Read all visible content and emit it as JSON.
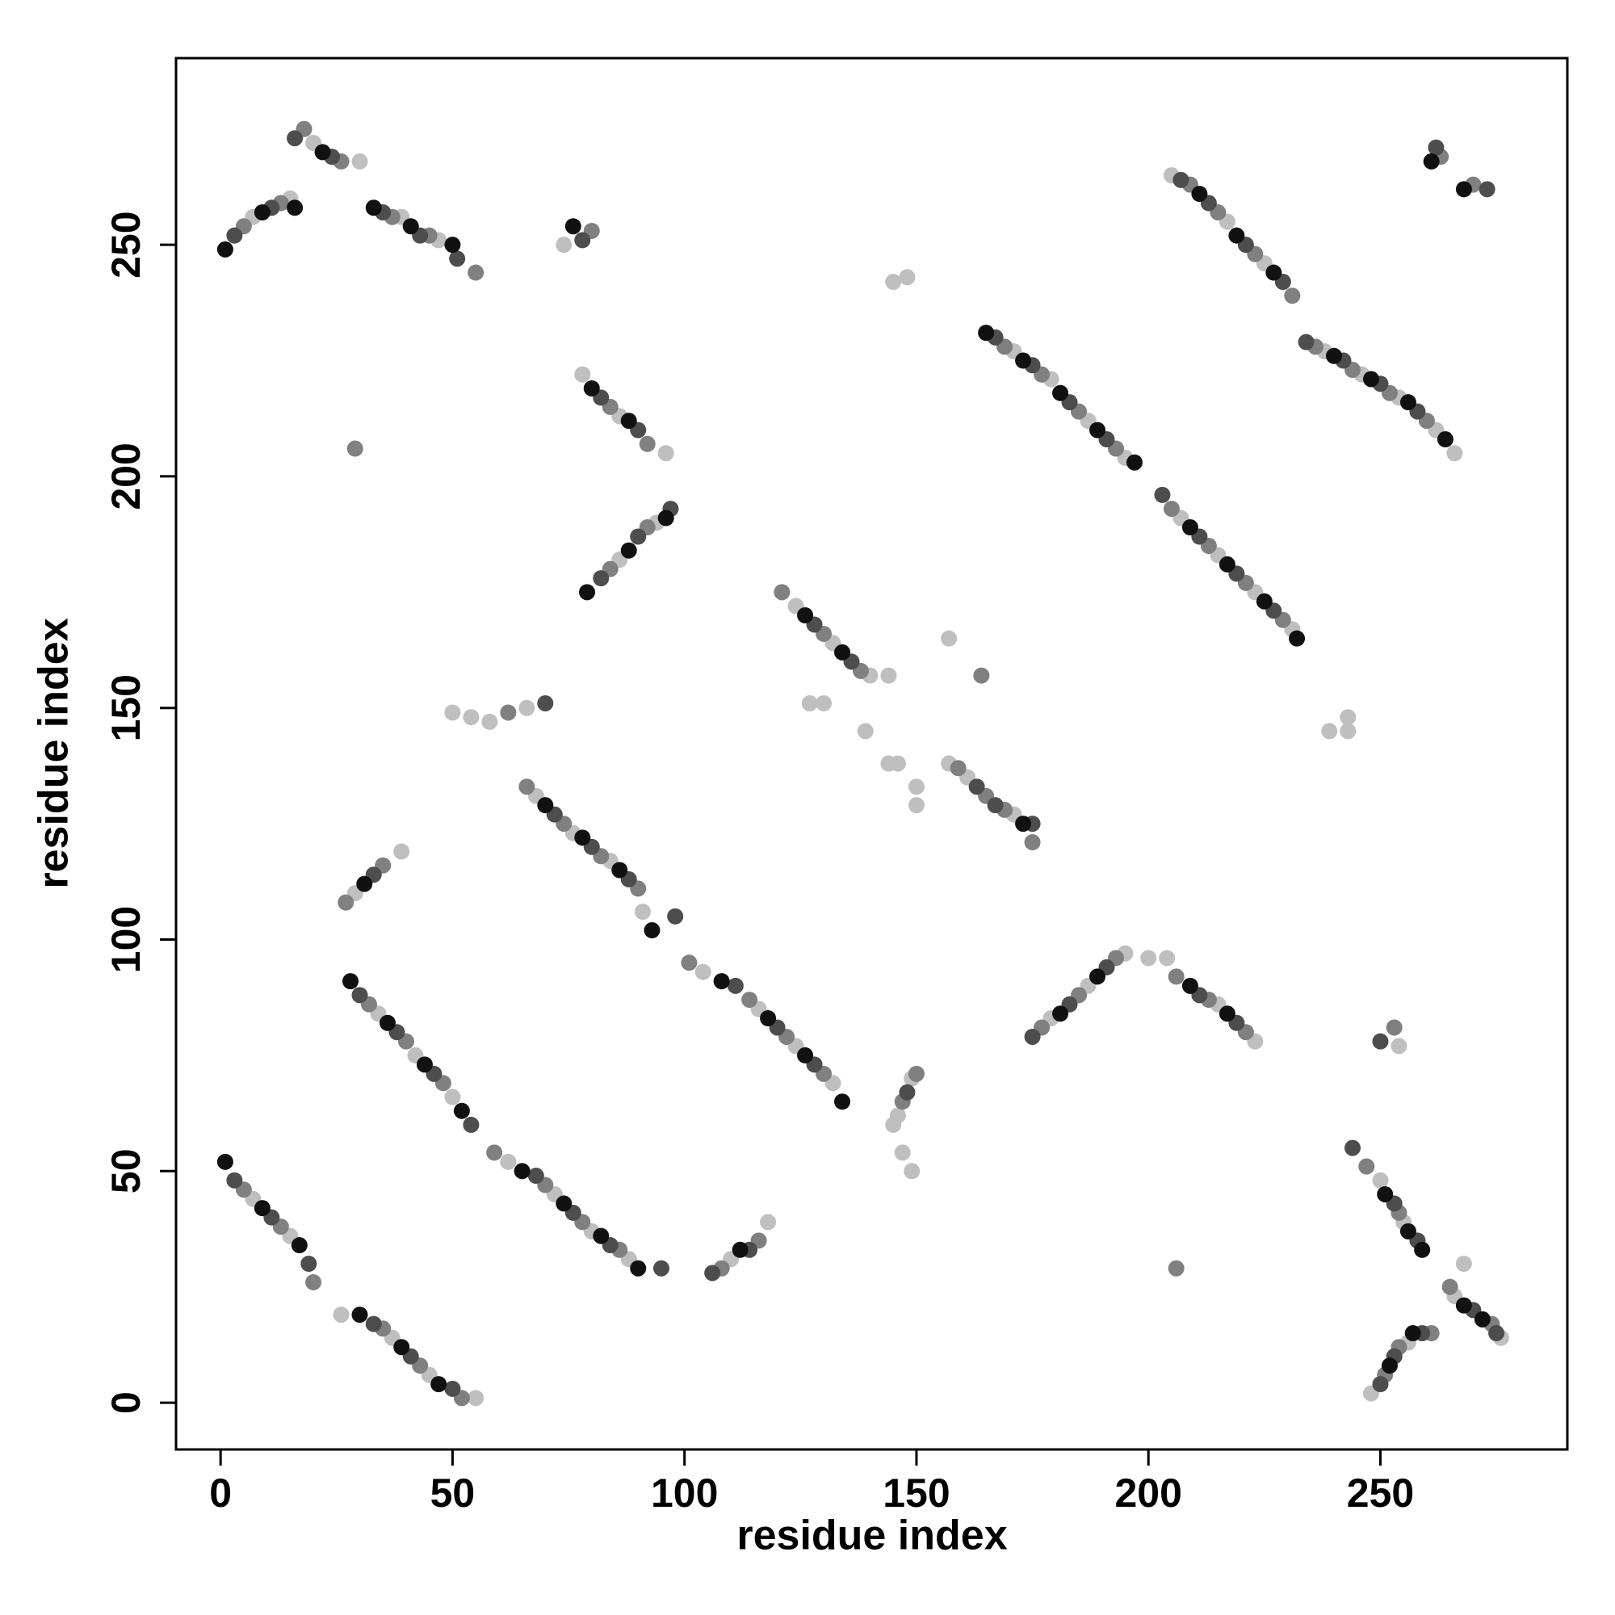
{
  "chart_data": {
    "type": "scatter",
    "xlabel": "residue index",
    "ylabel": "residue index",
    "xlim": [
      -9.6,
      290.3
    ],
    "ylim": [
      -10.1,
      290.3
    ],
    "xticks": [
      0,
      50,
      100,
      150,
      200,
      250
    ],
    "yticks": [
      0,
      50,
      100,
      150,
      200,
      250
    ],
    "grid": false,
    "series": [
      {
        "color": "#bfbfbf",
        "x": [
          7,
          15,
          26,
          37,
          45,
          55,
          34,
          42,
          50,
          62,
          72,
          80,
          88,
          68,
          76,
          84,
          91,
          104,
          116,
          124,
          132,
          110,
          118,
          7,
          15,
          20,
          30,
          39,
          47,
          74,
          78,
          86,
          96,
          86,
          94,
          29,
          39,
          50,
          54,
          58,
          66,
          124,
          132,
          140,
          144,
          127,
          130,
          139,
          144,
          146,
          150,
          150,
          145,
          146,
          149,
          147,
          149,
          157,
          161,
          171,
          157,
          145,
          148,
          171,
          179,
          187,
          195,
          207,
          215,
          223,
          231,
          205,
          217,
          225,
          238,
          246,
          254,
          262,
          266,
          179,
          187,
          195,
          200,
          204,
          215,
          223,
          239,
          243,
          243,
          250,
          255,
          254,
          248,
          256,
          266,
          276,
          268
        ],
        "values": [
          44,
          36,
          19,
          14,
          6,
          1,
          84,
          75,
          66,
          52,
          45,
          37,
          31,
          131,
          123,
          117,
          106,
          93,
          85,
          77,
          69,
          31,
          39,
          256,
          260,
          272,
          268,
          256,
          251,
          250,
          222,
          213,
          205,
          182,
          190,
          110,
          119,
          149,
          148,
          147,
          150,
          172,
          164,
          157,
          157,
          151,
          151,
          145,
          138,
          138,
          133,
          129,
          60,
          62,
          70,
          54,
          50,
          138,
          135,
          127,
          165,
          242,
          243,
          227,
          221,
          212,
          204,
          191,
          183,
          175,
          167,
          265,
          255,
          246,
          227,
          222,
          217,
          210,
          205,
          83,
          90,
          97,
          96,
          96,
          86,
          78,
          145,
          148,
          145,
          48,
          39,
          77,
          2,
          13,
          23,
          14,
          30
        ]
      },
      {
        "color": "#808080",
        "x": [
          5,
          13,
          20,
          35,
          43,
          52,
          32,
          40,
          48,
          59,
          70,
          78,
          86,
          66,
          74,
          82,
          90,
          101,
          114,
          122,
          130,
          108,
          116,
          5,
          13,
          18,
          26,
          37,
          45,
          55,
          80,
          84,
          92,
          84,
          92,
          27,
          35,
          62,
          121,
          130,
          138,
          147,
          150,
          159,
          165,
          169,
          175,
          164,
          169,
          177,
          185,
          193,
          205,
          213,
          221,
          229,
          209,
          215,
          223,
          231,
          236,
          244,
          252,
          260,
          263,
          270,
          177,
          185,
          193,
          206,
          213,
          221,
          29,
          206,
          247,
          254,
          253,
          251,
          254,
          261,
          265,
          274
        ],
        "values": [
          46,
          38,
          26,
          16,
          8,
          1,
          86,
          78,
          69,
          54,
          47,
          39,
          33,
          133,
          125,
          118,
          111,
          95,
          87,
          79,
          71,
          29,
          35,
          254,
          259,
          275,
          268,
          256,
          252,
          244,
          253,
          215,
          207,
          180,
          189,
          108,
          116,
          149,
          175,
          166,
          158,
          65,
          71,
          137,
          131,
          128,
          121,
          157,
          228,
          222,
          214,
          206,
          193,
          185,
          177,
          169,
          263,
          257,
          248,
          239,
          228,
          223,
          218,
          212,
          269,
          263,
          81,
          88,
          96,
          92,
          87,
          80,
          206,
          29,
          51,
          41,
          81,
          6,
          12,
          15,
          25,
          17
        ]
      },
      {
        "color": "#4d4d4d",
        "x": [
          3,
          11,
          19,
          33,
          41,
          50,
          30,
          38,
          46,
          54,
          68,
          76,
          84,
          95,
          72,
          80,
          88,
          98,
          111,
          120,
          128,
          106,
          114,
          3,
          11,
          16,
          24,
          35,
          43,
          51,
          78,
          82,
          90,
          82,
          90,
          97,
          33,
          70,
          128,
          136,
          148,
          163,
          167,
          175,
          167,
          175,
          183,
          191,
          203,
          211,
          219,
          227,
          207,
          213,
          221,
          229,
          234,
          242,
          250,
          258,
          262,
          273,
          175,
          183,
          191,
          211,
          219,
          244,
          253,
          258,
          250,
          250,
          253,
          259,
          270,
          275
        ],
        "values": [
          48,
          40,
          30,
          17,
          10,
          3,
          88,
          80,
          71,
          60,
          49,
          41,
          34,
          29,
          127,
          120,
          113,
          105,
          90,
          81,
          73,
          28,
          33,
          252,
          258,
          273,
          269,
          257,
          252,
          247,
          251,
          217,
          210,
          178,
          187,
          193,
          114,
          151,
          168,
          160,
          67,
          133,
          129,
          125,
          230,
          224,
          216,
          208,
          196,
          187,
          179,
          171,
          264,
          259,
          250,
          242,
          229,
          225,
          220,
          214,
          271,
          262,
          79,
          86,
          94,
          88,
          82,
          55,
          43,
          35,
          78,
          4,
          10,
          15,
          20,
          15
        ]
      },
      {
        "color": "#111111",
        "x": [
          1,
          9,
          17,
          30,
          39,
          47,
          28,
          36,
          44,
          52,
          65,
          74,
          82,
          90,
          70,
          78,
          86,
          93,
          108,
          118,
          126,
          134,
          112,
          1,
          9,
          16,
          22,
          33,
          41,
          50,
          76,
          80,
          88,
          79,
          88,
          96,
          31,
          126,
          134,
          173,
          165,
          173,
          181,
          189,
          197,
          209,
          217,
          225,
          232,
          211,
          219,
          227,
          240,
          248,
          256,
          264,
          261,
          268,
          181,
          189,
          209,
          217,
          251,
          256,
          259,
          252,
          257,
          268,
          272
        ],
        "values": [
          52,
          42,
          34,
          19,
          12,
          4,
          91,
          82,
          73,
          63,
          50,
          43,
          36,
          29,
          129,
          122,
          115,
          102,
          91,
          83,
          75,
          65,
          33,
          249,
          257,
          258,
          270,
          258,
          254,
          250,
          254,
          219,
          212,
          175,
          184,
          191,
          112,
          170,
          162,
          125,
          231,
          225,
          218,
          210,
          203,
          189,
          181,
          173,
          165,
          261,
          252,
          244,
          226,
          221,
          216,
          208,
          268,
          262,
          84,
          92,
          90,
          84,
          45,
          37,
          33,
          8,
          15,
          21,
          18
        ]
      }
    ]
  }
}
